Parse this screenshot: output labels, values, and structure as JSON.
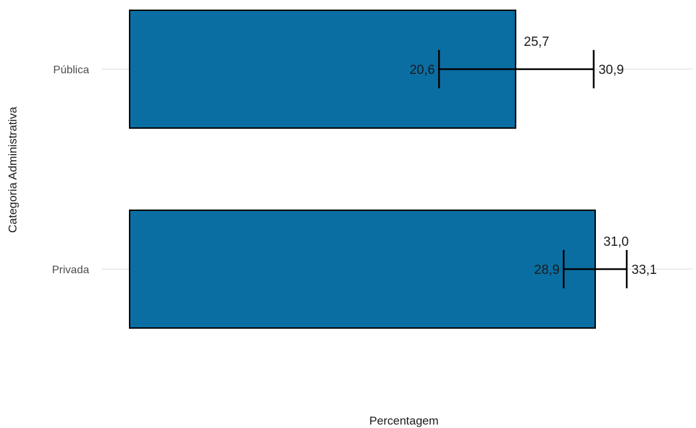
{
  "chart_data": {
    "type": "bar",
    "orientation": "horizontal",
    "title": "",
    "xlabel": "Percentagem",
    "ylabel": "Categoria Administrativa",
    "categories": [
      "Pública",
      "Privada"
    ],
    "values": [
      25.7,
      31.0
    ],
    "value_labels": [
      "25,7",
      "31,0"
    ],
    "ci_lower": [
      20.6,
      28.9
    ],
    "ci_lower_labels": [
      "20,6",
      "28,9"
    ],
    "ci_upper": [
      30.9,
      33.1
    ],
    "ci_upper_labels": [
      "30,9",
      "33,1"
    ],
    "xlim": [
      0,
      33.1
    ],
    "bar_color": "#0a6ea3",
    "bar_outline_color": "#000000",
    "grid": "horizontal-major-only",
    "legend": "none"
  }
}
